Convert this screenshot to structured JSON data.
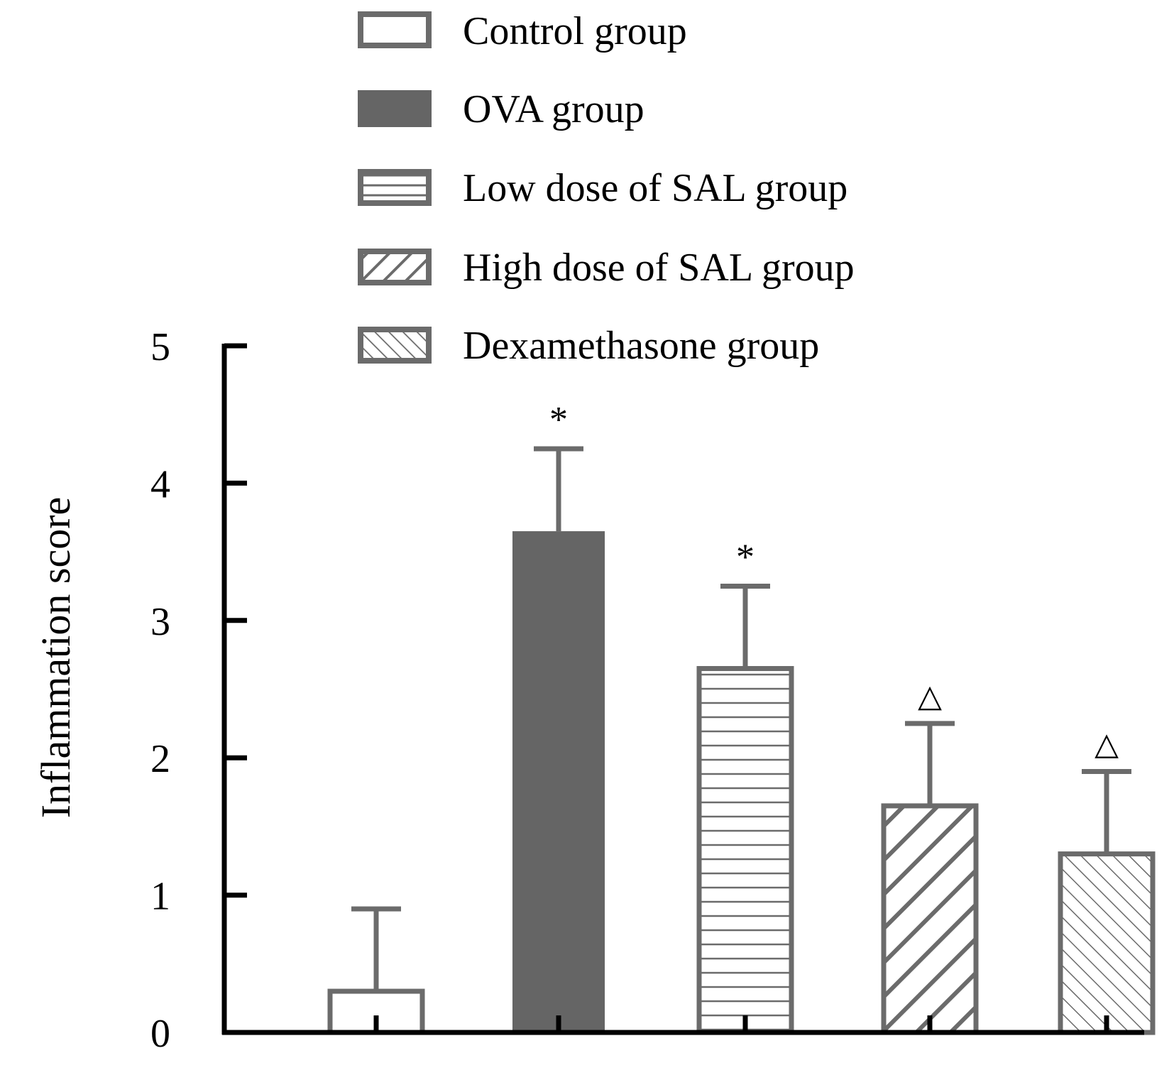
{
  "chart_data": {
    "type": "bar",
    "title": "",
    "xlabel": "",
    "ylabel": "Inflammation score",
    "ylim": [
      0,
      5
    ],
    "yticks": [
      0,
      1,
      2,
      3,
      4,
      5
    ],
    "grid": false,
    "legend_position": "top-center",
    "categories": [
      "Control group",
      "OVA group",
      "Low dose of SAL group",
      "High dose of SAL group",
      "Dexamethasone group"
    ],
    "series": [
      {
        "name": "Inflammation score",
        "values": [
          0.3,
          3.65,
          2.65,
          1.65,
          1.3
        ],
        "error": [
          0.6,
          0.6,
          0.6,
          0.6,
          0.6
        ]
      }
    ],
    "annotations": [
      "",
      "*",
      "*",
      "△",
      "△"
    ],
    "fills": [
      "open",
      "solid",
      "horizontal-lines",
      "backward-diagonal",
      "forward-diagonal"
    ]
  },
  "colors": {
    "bar_stroke": "#6b6b6b",
    "solid_fill": "#656565",
    "axis": "#000000",
    "text": "#000000"
  }
}
